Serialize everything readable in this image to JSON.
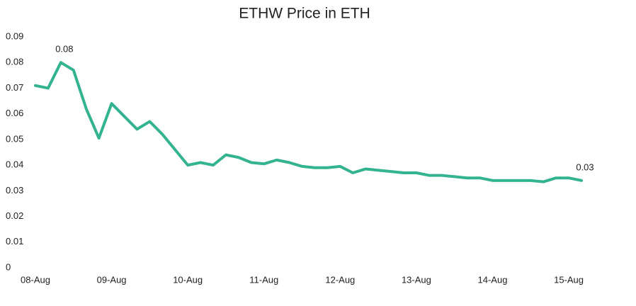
{
  "chart_data": {
    "type": "line",
    "title": "ETHW Price in ETH",
    "categories": [
      "08-Aug",
      null,
      null,
      null,
      null,
      null,
      "09-Aug",
      null,
      null,
      null,
      null,
      null,
      "10-Aug",
      null,
      null,
      null,
      null,
      null,
      "11-Aug",
      null,
      null,
      null,
      null,
      null,
      "12-Aug",
      null,
      null,
      null,
      null,
      null,
      "13-Aug",
      null,
      null,
      null,
      null,
      null,
      "14-Aug",
      null,
      null,
      null,
      null,
      null,
      "15-Aug",
      null
    ],
    "values": [
      0.071,
      0.07,
      0.08,
      0.077,
      0.062,
      0.0505,
      0.064,
      0.059,
      0.054,
      0.057,
      0.052,
      0.046,
      0.04,
      0.041,
      0.04,
      0.044,
      0.043,
      0.041,
      0.0405,
      0.042,
      0.041,
      0.0395,
      0.039,
      0.039,
      0.0395,
      0.037,
      0.0385,
      0.038,
      0.0375,
      0.037,
      0.037,
      0.036,
      0.036,
      0.0355,
      0.035,
      0.035,
      0.034,
      0.034,
      0.034,
      0.034,
      0.0335,
      0.035,
      0.035,
      0.034
    ],
    "value_labels": [
      null,
      null,
      "0.08",
      null,
      null,
      null,
      null,
      null,
      null,
      null,
      null,
      null,
      null,
      null,
      null,
      null,
      null,
      null,
      null,
      null,
      null,
      null,
      null,
      null,
      null,
      null,
      null,
      null,
      null,
      null,
      null,
      null,
      null,
      null,
      null,
      null,
      null,
      null,
      null,
      null,
      null,
      null,
      null,
      "0.03"
    ],
    "color": "#33b38f",
    "ylim": [
      0,
      0.09
    ],
    "yticks": [
      0,
      0.01,
      0.02,
      0.03,
      0.04,
      0.05,
      0.06,
      0.07,
      0.08,
      0.09
    ],
    "grid": false
  }
}
